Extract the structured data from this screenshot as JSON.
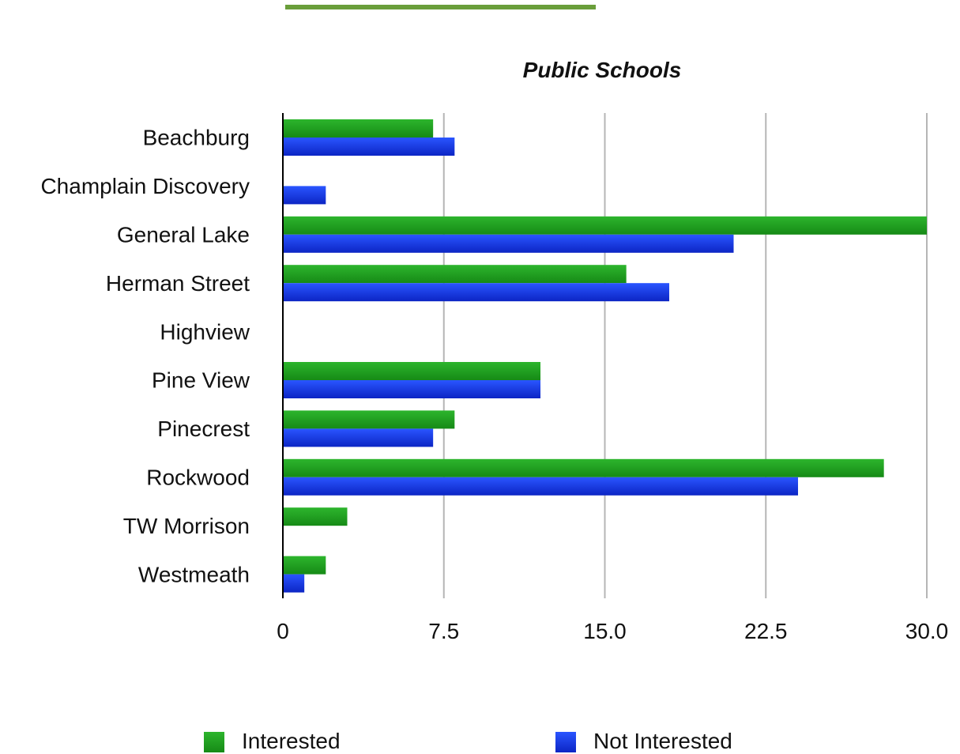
{
  "chart_data": {
    "type": "bar",
    "orientation": "horizontal",
    "title": "Public Schools",
    "xlabel": "",
    "ylabel": "",
    "categories": [
      "Beachburg",
      "Champlain Discovery",
      "General Lake",
      "Herman Street",
      "Highview",
      "Pine View",
      "Pinecrest",
      "Rockwood",
      "TW Morrison",
      "Westmeath"
    ],
    "series": [
      {
        "name": "Interested",
        "color": "#1f9c1f",
        "values": [
          7,
          0,
          30,
          16,
          0,
          12,
          8,
          28,
          3,
          2
        ]
      },
      {
        "name": "Not Interested",
        "color": "#1336e0",
        "values": [
          8,
          2,
          21,
          18,
          0,
          12,
          7,
          24,
          0,
          1
        ]
      }
    ],
    "xlim": [
      0,
      30
    ],
    "xticks": [
      "0",
      "7.5",
      "15.0",
      "22.5",
      "30.0"
    ],
    "grid": "vertical",
    "legend": "bottom"
  },
  "header_bar_color": "#6a9e3a"
}
